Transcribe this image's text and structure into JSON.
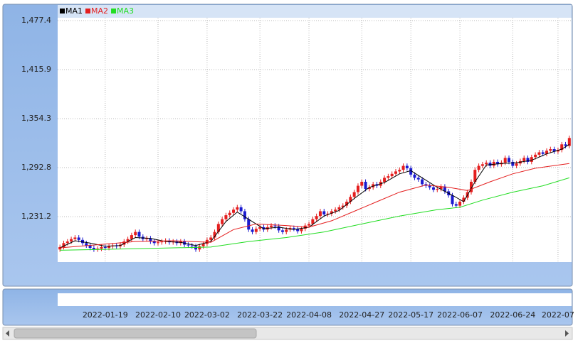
{
  "chart_data": {
    "type": "candlestick",
    "up_color": "#e41e1e",
    "down_color": "#1a1ad0",
    "grid": true,
    "xlim": [
      -0.6,
      135.6
    ],
    "ylim": [
      1174.2,
      1481
    ],
    "yticks": [
      {
        "value": 1231.2,
        "label": "1,231.2"
      },
      {
        "value": 1292.8,
        "label": "1,292.8"
      },
      {
        "value": 1354.3,
        "label": "1,354.3"
      },
      {
        "value": 1415.9,
        "label": "1,415.9"
      },
      {
        "value": 1477.4,
        "label": "1,477.4"
      }
    ],
    "xticks": [
      {
        "value": 12,
        "label": "2022-01-19"
      },
      {
        "value": 26,
        "label": "2022-02-10"
      },
      {
        "value": 39,
        "label": "2022-03-02"
      },
      {
        "value": 53,
        "label": "2022-03-22"
      },
      {
        "value": 66,
        "label": "2022-04-08"
      },
      {
        "value": 80,
        "label": "2022-04-27"
      },
      {
        "value": 93,
        "label": "2022-05-17"
      },
      {
        "value": 106,
        "label": "2022-06-07"
      },
      {
        "value": 120,
        "label": "2022-06-24"
      },
      {
        "value": 132,
        "label": "2022-07"
      }
    ],
    "open": [
      1190,
      1193,
      1198,
      1200,
      1203,
      1205,
      1202,
      1198,
      1195,
      1192,
      1190,
      1191,
      1193,
      1192,
      1194,
      1195,
      1194,
      1196,
      1200,
      1203,
      1208,
      1212,
      1206,
      1203,
      1204,
      1200,
      1198,
      1199,
      1200,
      1201,
      1199,
      1200,
      1198,
      1200,
      1196,
      1195,
      1194,
      1190,
      1194,
      1197,
      1202,
      1205,
      1212,
      1222,
      1228,
      1233,
      1236,
      1240,
      1243,
      1238,
      1228,
      1215,
      1212,
      1216,
      1218,
      1215,
      1218,
      1220,
      1219,
      1214,
      1212,
      1215,
      1217,
      1216,
      1213,
      1216,
      1220,
      1222,
      1228,
      1232,
      1238,
      1234,
      1235,
      1238,
      1240,
      1243,
      1245,
      1250,
      1256,
      1262,
      1270,
      1275,
      1266,
      1268,
      1272,
      1270,
      1275,
      1280,
      1282,
      1285,
      1288,
      1290,
      1295,
      1292,
      1284,
      1280,
      1278,
      1272,
      1270,
      1268,
      1265,
      1266,
      1269,
      1263,
      1258,
      1247,
      1245,
      1250,
      1255,
      1262,
      1275,
      1290,
      1295,
      1297,
      1299,
      1295,
      1300,
      1297,
      1299,
      1305,
      1300,
      1295,
      1298,
      1301,
      1305,
      1300,
      1306,
      1309,
      1312,
      1310,
      1314,
      1316,
      1313,
      1315,
      1322,
      1320
    ],
    "high": [
      1196,
      1201,
      1203,
      1206,
      1208,
      1208,
      1205,
      1201,
      1198,
      1195,
      1194,
      1196,
      1196,
      1197,
      1198,
      1198,
      1199,
      1203,
      1206,
      1211,
      1215,
      1215,
      1209,
      1207,
      1207,
      1203,
      1202,
      1203,
      1204,
      1204,
      1203,
      1203,
      1203,
      1203,
      1199,
      1198,
      1197,
      1197,
      1200,
      1205,
      1208,
      1215,
      1225,
      1231,
      1236,
      1239,
      1243,
      1246,
      1246,
      1241,
      1231,
      1218,
      1219,
      1221,
      1221,
      1221,
      1223,
      1223,
      1222,
      1217,
      1218,
      1220,
      1220,
      1219,
      1219,
      1223,
      1225,
      1231,
      1235,
      1241,
      1241,
      1238,
      1241,
      1243,
      1246,
      1248,
      1253,
      1259,
      1265,
      1273,
      1278,
      1278,
      1271,
      1275,
      1275,
      1278,
      1283,
      1285,
      1288,
      1291,
      1293,
      1298,
      1298,
      1295,
      1287,
      1283,
      1281,
      1275,
      1273,
      1271,
      1269,
      1272,
      1272,
      1266,
      1261,
      1250,
      1253,
      1258,
      1265,
      1278,
      1293,
      1298,
      1300,
      1302,
      1302,
      1303,
      1303,
      1302,
      1308,
      1308,
      1303,
      1301,
      1304,
      1308,
      1308,
      1309,
      1312,
      1315,
      1315,
      1317,
      1319,
      1319,
      1318,
      1325,
      1325,
      1333
    ],
    "low": [
      1187,
      1190,
      1195,
      1197,
      1200,
      1199,
      1195,
      1192,
      1189,
      1187,
      1187,
      1188,
      1189,
      1189,
      1191,
      1191,
      1191,
      1193,
      1197,
      1200,
      1205,
      1203,
      1200,
      1200,
      1197,
      1195,
      1195,
      1196,
      1197,
      1196,
      1196,
      1195,
      1195,
      1193,
      1192,
      1191,
      1187,
      1187,
      1191,
      1194,
      1199,
      1202,
      1209,
      1219,
      1225,
      1230,
      1233,
      1237,
      1235,
      1225,
      1212,
      1209,
      1209,
      1213,
      1212,
      1212,
      1215,
      1216,
      1211,
      1209,
      1209,
      1212,
      1213,
      1210,
      1210,
      1213,
      1217,
      1219,
      1225,
      1229,
      1231,
      1231,
      1232,
      1235,
      1237,
      1240,
      1242,
      1247,
      1253,
      1259,
      1267,
      1263,
      1263,
      1265,
      1267,
      1267,
      1272,
      1277,
      1279,
      1282,
      1285,
      1287,
      1289,
      1281,
      1277,
      1275,
      1269,
      1267,
      1265,
      1262,
      1262,
      1263,
      1260,
      1255,
      1244,
      1242,
      1242,
      1247,
      1252,
      1259,
      1272,
      1287,
      1292,
      1294,
      1292,
      1292,
      1294,
      1294,
      1296,
      1297,
      1292,
      1292,
      1295,
      1298,
      1297,
      1297,
      1303,
      1306,
      1307,
      1307,
      1311,
      1310,
      1310,
      1312,
      1317,
      1317
    ],
    "close": [
      1193,
      1198,
      1200,
      1203,
      1205,
      1202,
      1198,
      1195,
      1192,
      1190,
      1191,
      1193,
      1192,
      1194,
      1195,
      1194,
      1196,
      1200,
      1203,
      1208,
      1212,
      1206,
      1203,
      1204,
      1200,
      1198,
      1199,
      1200,
      1201,
      1199,
      1200,
      1198,
      1200,
      1196,
      1195,
      1194,
      1190,
      1194,
      1197,
      1202,
      1205,
      1212,
      1222,
      1228,
      1233,
      1236,
      1240,
      1243,
      1238,
      1228,
      1215,
      1212,
      1216,
      1218,
      1215,
      1218,
      1220,
      1219,
      1214,
      1212,
      1215,
      1217,
      1216,
      1213,
      1216,
      1220,
      1222,
      1228,
      1232,
      1238,
      1234,
      1235,
      1238,
      1240,
      1243,
      1245,
      1250,
      1256,
      1262,
      1270,
      1275,
      1266,
      1268,
      1272,
      1270,
      1275,
      1280,
      1282,
      1285,
      1288,
      1290,
      1295,
      1292,
      1284,
      1280,
      1278,
      1272,
      1270,
      1268,
      1265,
      1266,
      1269,
      1263,
      1258,
      1247,
      1245,
      1250,
      1255,
      1262,
      1275,
      1290,
      1295,
      1297,
      1299,
      1295,
      1300,
      1297,
      1299,
      1305,
      1300,
      1295,
      1298,
      1301,
      1305,
      1300,
      1306,
      1309,
      1312,
      1310,
      1314,
      1316,
      1313,
      1315,
      1322,
      1320,
      1330
    ],
    "series": [
      {
        "name": "MA1",
        "color": "#000000",
        "x": [
          0,
          4,
          8,
          12,
          16,
          20,
          24,
          28,
          32,
          36,
          40,
          44,
          47,
          50,
          54,
          58,
          62,
          66,
          70,
          74,
          78,
          82,
          86,
          90,
          93,
          96,
          100,
          104,
          107,
          110,
          113,
          117,
          121,
          125,
          129,
          133,
          135
        ],
        "values": [
          1192,
          1201,
          1198,
          1194,
          1195,
          1205,
          1204,
          1200,
          1199,
          1195,
          1200,
          1225,
          1237,
          1228,
          1216,
          1218,
          1215,
          1218,
          1232,
          1239,
          1254,
          1268,
          1274,
          1285,
          1289,
          1280,
          1268,
          1258,
          1250,
          1275,
          1296,
          1298,
          1299,
          1302,
          1310,
          1316,
          1322
        ]
      },
      {
        "name": "MA2",
        "color": "#e41e1e",
        "x": [
          0,
          10,
          20,
          30,
          40,
          46,
          52,
          60,
          66,
          72,
          78,
          84,
          90,
          97,
          103,
          108,
          114,
          120,
          126,
          135
        ],
        "values": [
          1192,
          1196,
          1200,
          1201,
          1199,
          1215,
          1222,
          1220,
          1218,
          1226,
          1238,
          1250,
          1262,
          1271,
          1268,
          1264,
          1275,
          1285,
          1292,
          1298
        ]
      },
      {
        "name": "MA3",
        "color": "#22dd22",
        "x": [
          0,
          20,
          40,
          50,
          60,
          70,
          80,
          90,
          100,
          106,
          112,
          120,
          128,
          135
        ],
        "values": [
          1189,
          1191,
          1193,
          1200,
          1205,
          1212,
          1222,
          1232,
          1240,
          1243,
          1252,
          1262,
          1270,
          1280
        ]
      }
    ]
  }
}
